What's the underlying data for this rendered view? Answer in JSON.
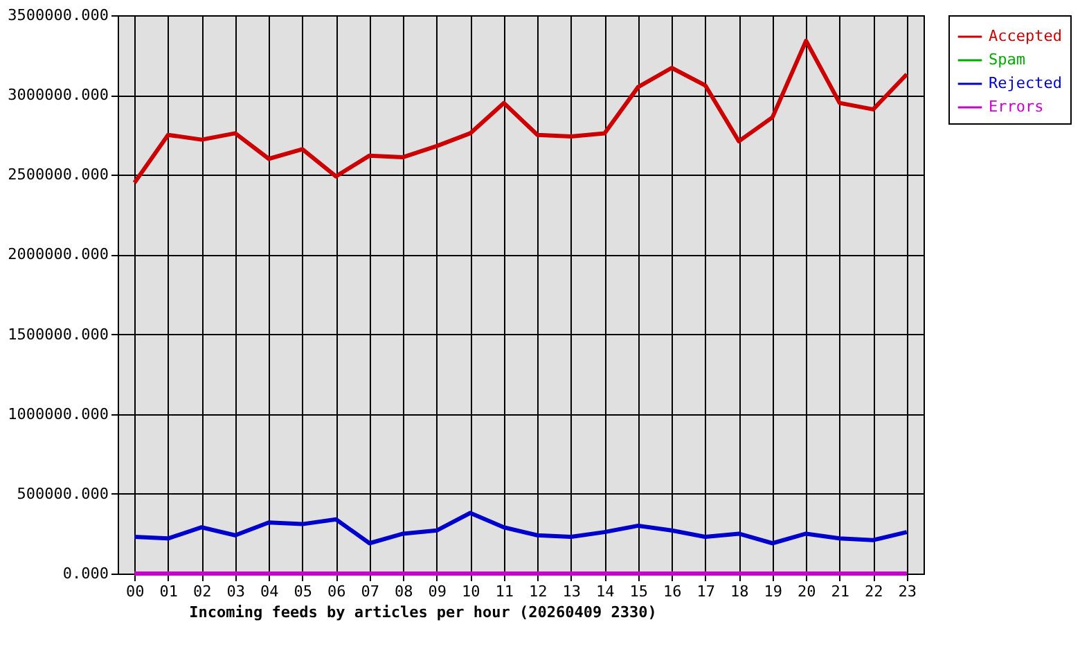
{
  "chart_data": {
    "type": "line",
    "xlabel": "Incoming feeds by articles per hour (20260409 2330)",
    "categories": [
      "00",
      "01",
      "02",
      "03",
      "04",
      "05",
      "06",
      "07",
      "08",
      "09",
      "10",
      "11",
      "12",
      "13",
      "14",
      "15",
      "16",
      "17",
      "18",
      "19",
      "20",
      "21",
      "22",
      "23"
    ],
    "series": [
      {
        "name": "Accepted",
        "color": "#cc0000",
        "values": [
          2450000,
          2750000,
          2720000,
          2760000,
          2600000,
          2660000,
          2490000,
          2620000,
          2610000,
          2680000,
          2760000,
          2950000,
          2750000,
          2740000,
          2760000,
          3050000,
          3170000,
          3060000,
          2710000,
          2860000,
          3340000,
          2950000,
          2910000,
          3130000
        ]
      },
      {
        "name": "Spam",
        "color": "#00aa00",
        "values": [
          null,
          null,
          null,
          null,
          null,
          null,
          null,
          null,
          null,
          null,
          null,
          null,
          null,
          null,
          null,
          null,
          null,
          null,
          null,
          null,
          null,
          null,
          null,
          null
        ]
      },
      {
        "name": "Rejected",
        "color": "#0000cc",
        "values": [
          230000,
          220000,
          290000,
          240000,
          320000,
          310000,
          340000,
          190000,
          250000,
          270000,
          380000,
          290000,
          240000,
          230000,
          260000,
          300000,
          270000,
          230000,
          250000,
          190000,
          250000,
          220000,
          210000,
          260000
        ]
      },
      {
        "name": "Errors",
        "color": "#cc00cc",
        "values": [
          0,
          0,
          0,
          0,
          0,
          0,
          0,
          0,
          0,
          0,
          0,
          0,
          0,
          0,
          0,
          0,
          0,
          0,
          0,
          0,
          0,
          0,
          0,
          0
        ]
      }
    ],
    "ylim": [
      0,
      3500000
    ],
    "yticks": [
      {
        "value": 0,
        "label": "0.000"
      },
      {
        "value": 500000,
        "label": "500000.000"
      },
      {
        "value": 1000000,
        "label": "1000000.000"
      },
      {
        "value": 1500000,
        "label": "1500000.000"
      },
      {
        "value": 2000000,
        "label": "2000000.000"
      },
      {
        "value": 2500000,
        "label": "2500000.000"
      },
      {
        "value": 3000000,
        "label": "3000000.000"
      },
      {
        "value": 3500000,
        "label": "3500000.000"
      }
    ],
    "grid": true,
    "legend": "top right",
    "marker": "none",
    "line_style": "solid"
  }
}
